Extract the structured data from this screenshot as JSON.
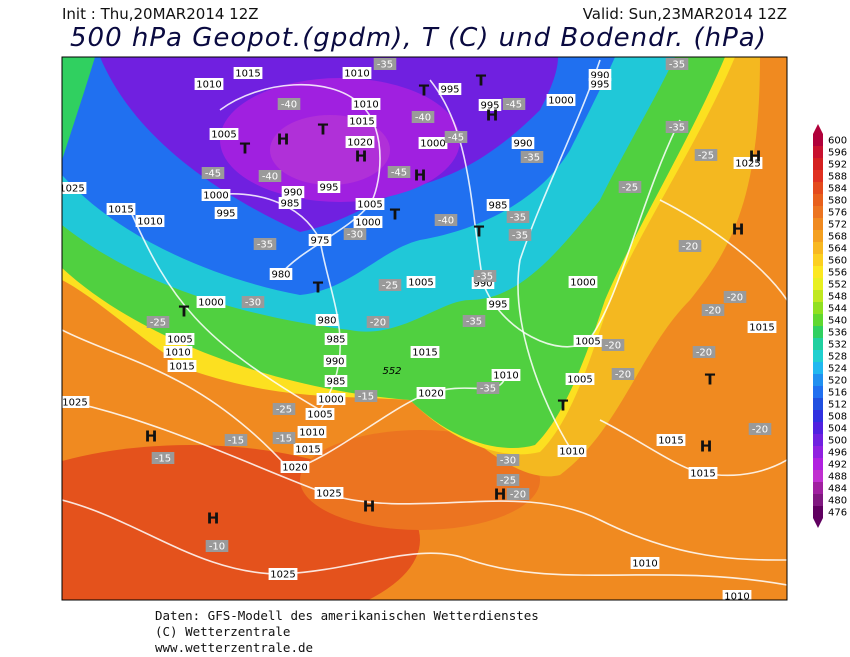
{
  "header": {
    "init": "Init : Thu,20MAR2014 12Z",
    "valid": "Valid: Sun,23MAR2014 12Z",
    "title": "500 hPa Geopot.(gpdm), T (C) und Bodendr. (hPa)"
  },
  "colorbar": {
    "levels": [
      600,
      596,
      592,
      588,
      584,
      580,
      576,
      572,
      568,
      564,
      560,
      556,
      552,
      548,
      544,
      540,
      536,
      532,
      528,
      524,
      520,
      516,
      512,
      508,
      504,
      500,
      496,
      492,
      488,
      484,
      480,
      476
    ],
    "colors": [
      "#b0003a",
      "#c8102e",
      "#d42020",
      "#e03020",
      "#e44a1c",
      "#e8601c",
      "#ec7420",
      "#f08a20",
      "#f4a020",
      "#f8b820",
      "#fcd020",
      "#fce820",
      "#e8f020",
      "#c0e820",
      "#90e020",
      "#60d830",
      "#30d060",
      "#20d0a0",
      "#20d0d0",
      "#20b8f0",
      "#2090f0",
      "#2070f0",
      "#2050e0",
      "#3030e0",
      "#5020e0",
      "#7020e0",
      "#9020e0",
      "#b020e0",
      "#c030d0",
      "#a020a0",
      "#801880",
      "#600060"
    ]
  },
  "map": {
    "pressure_labels": [
      "1015",
      "1010",
      "1010",
      "995",
      "995",
      "990",
      "995",
      "1000",
      "1010",
      "1015",
      "1005",
      "1020",
      "1000",
      "990",
      "990",
      "995",
      "985",
      "1000",
      "995",
      "1005",
      "1000",
      "1015",
      "1010",
      "1025",
      "1025",
      "975",
      "985",
      "980",
      "1005",
      "990",
      "995",
      "1000",
      "1000",
      "980",
      "985",
      "990",
      "985",
      "1005",
      "1010",
      "1015",
      "1015",
      "1005",
      "1010",
      "1005",
      "1020",
      "1000",
      "1005",
      "1010",
      "1015",
      "1025",
      "1020",
      "1025",
      "1010",
      "1015",
      "1015",
      "1015",
      "1010",
      "1025",
      "1010"
    ],
    "temperature_labels": [
      "-35",
      "-35",
      "-40",
      "-40",
      "-45",
      "-45",
      "-35",
      "-25",
      "-40",
      "-45",
      "-45",
      "-35",
      "-25",
      "-30",
      "-35",
      "-40",
      "-35",
      "-35",
      "-20",
      "-25",
      "-35",
      "-30",
      "-25",
      "-20",
      "-35",
      "-20",
      "-20",
      "-20",
      "-20",
      "-20",
      "-35",
      "-15",
      "-25",
      "-15",
      "-15",
      "-15",
      "-20",
      "-30",
      "-25",
      "-20",
      "-10"
    ],
    "height_label": "552",
    "pressure_centers": [
      "T",
      "H",
      "T",
      "H",
      "T",
      "T",
      "H",
      "H",
      "T",
      "T",
      "T",
      "T",
      "H",
      "H",
      "T",
      "T",
      "H",
      "H",
      "H",
      "H",
      "H"
    ]
  },
  "footer": {
    "line1": "Daten: GFS-Modell des amerikanischen Wetterdienstes",
    "line2": "(C) Wetterzentrale",
    "line3": "www.wetterzentrale.de"
  }
}
